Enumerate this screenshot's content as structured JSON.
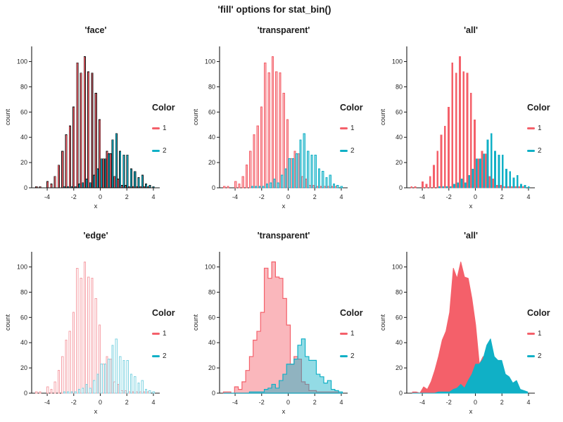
{
  "figure_title": "'fill' options for stat_bin()",
  "legend": {
    "title": "Color",
    "items": [
      {
        "label": "1",
        "color": "#F4606A"
      },
      {
        "label": "2",
        "color": "#10B0C6"
      }
    ]
  },
  "axes": {
    "x_label": "x",
    "y_label": "count",
    "x_ticks": [
      -4,
      -2,
      0,
      2,
      4
    ],
    "y_ticks": [
      0,
      20,
      40,
      60,
      80,
      100
    ],
    "x_range": [
      -5.17,
      4.48
    ],
    "y_range": [
      0,
      112
    ]
  },
  "style": {
    "red": "#F4606A",
    "teal": "#10B0C6",
    "edge_light_red": "#F6A0A7",
    "edge_light_teal": "#7FD3E1",
    "face_edge_color": "#111111",
    "transparent_fill_opacity": 0.45,
    "axis_color": "#1a1a1a",
    "text_color": "#262626"
  },
  "chart_data": {
    "type": "bar",
    "title": "'fill' options for stat_bin()",
    "xlabel": "x",
    "ylabel": "count",
    "ylim": [
      0,
      112
    ],
    "grid": false,
    "legend_position": "right",
    "bin_width": 0.28,
    "bin_centers": [
      -4.74,
      -4.46,
      -4.18,
      -3.9,
      -3.62,
      -3.34,
      -3.06,
      -2.78,
      -2.5,
      -2.22,
      -1.94,
      -1.66,
      -1.38,
      -1.1,
      -0.82,
      -0.54,
      -0.26,
      0.02,
      0.3,
      0.58,
      0.86,
      1.14,
      1.42,
      1.7,
      1.98,
      2.26,
      2.54,
      2.82,
      3.1,
      3.38,
      3.66,
      3.94
    ],
    "series": [
      {
        "name": "1",
        "color": "#F4606A",
        "values": [
          1,
          1,
          0,
          5,
          3,
          9,
          18,
          29,
          42,
          49,
          64,
          99,
          91,
          104,
          92,
          91,
          75,
          54,
          23,
          29,
          27,
          9,
          7,
          2,
          2,
          1,
          1,
          1,
          1,
          1,
          1,
          0
        ]
      },
      {
        "name": "2",
        "color": "#10B0C6",
        "values": [
          0,
          0,
          0,
          0,
          0,
          0,
          0,
          1,
          1,
          1,
          1,
          3,
          4,
          7,
          4,
          10,
          15,
          23,
          23,
          27,
          38,
          43,
          29,
          26,
          26,
          15,
          13,
          8,
          10,
          3,
          2,
          1
        ]
      }
    ],
    "panels": [
      {
        "title": "'face'",
        "geom": "bar",
        "fill": "face"
      },
      {
        "title": "'transparent'",
        "geom": "bar",
        "fill": "transparent"
      },
      {
        "title": "'all'",
        "geom": "bar",
        "fill": "all"
      },
      {
        "title": "'edge'",
        "geom": "bar",
        "fill": "edge"
      },
      {
        "title": "'transparent'",
        "geom": "stairs",
        "fill": "transparent"
      },
      {
        "title": "'all'",
        "geom": "area",
        "fill": "all"
      }
    ]
  }
}
